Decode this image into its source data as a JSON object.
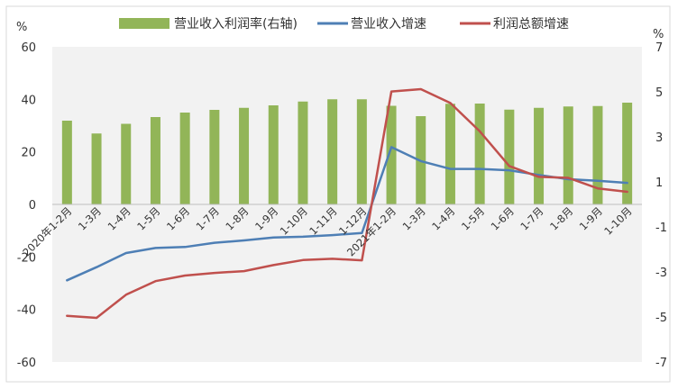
{
  "chart_data": {
    "type": "bar+line",
    "categories": [
      "2020年1-2月",
      "1-3月",
      "1-4月",
      "1-5月",
      "1-6月",
      "1-7月",
      "1-8月",
      "1-9月",
      "1-10月",
      "1-11月",
      "1-12月",
      "2021年1-2月",
      "1-3月",
      "1-4月",
      "1-5月",
      "1-6月",
      "1-7月",
      "1-8月",
      "1-9月",
      "1-10月"
    ],
    "left_axis": {
      "unit": "%",
      "min": -60,
      "max": 60,
      "ticks": [
        -60,
        -40,
        -20,
        0,
        20,
        40,
        60
      ]
    },
    "right_axis": {
      "unit": "%",
      "min": -7,
      "max": 7,
      "ticks": [
        -7,
        -5,
        -3,
        -1,
        1,
        3,
        5,
        7
      ]
    },
    "series": [
      {
        "name": "营业收入利润率(右轴)",
        "type": "bar",
        "axis": "right",
        "color": "#92b558",
        "values": [
          3.72,
          3.15,
          3.58,
          3.88,
          4.08,
          4.2,
          4.29,
          4.4,
          4.57,
          4.67,
          4.67,
          4.38,
          3.92,
          4.47,
          4.48,
          4.21,
          4.29,
          4.35,
          4.37,
          4.52
        ]
      },
      {
        "name": "营业收入增速",
        "type": "line",
        "axis": "left",
        "color": "#4e7fb5",
        "values": [
          -28.9,
          -23.9,
          -18.5,
          -16.6,
          -16.2,
          -14.6,
          -13.7,
          -12.6,
          -12.3,
          -11.7,
          -10.9,
          21.8,
          16.5,
          13.5,
          13.5,
          13.0,
          11.2,
          9.6,
          9.0,
          8.2
        ]
      },
      {
        "name": "利润总额增速",
        "type": "line",
        "axis": "left",
        "color": "#c0504d",
        "values": [
          -42.4,
          -43.2,
          -34.4,
          -29.2,
          -27.1,
          -26.1,
          -25.4,
          -23.1,
          -21.2,
          -20.7,
          -21.3,
          43.0,
          43.9,
          38.6,
          27.8,
          14.6,
          10.5,
          10.1,
          6.1,
          4.8
        ]
      }
    ],
    "legend_position": "top",
    "grid": false
  }
}
